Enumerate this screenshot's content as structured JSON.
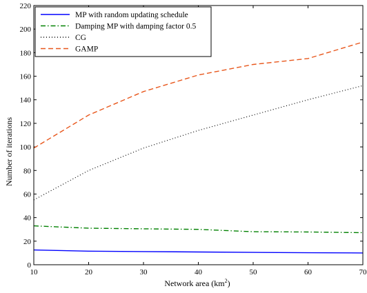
{
  "chart_data": {
    "type": "line",
    "title": "",
    "xlabel": "Network area (km",
    "xlabel_sup": "2",
    "xlabel_tail": ")",
    "ylabel": "Number of iterations",
    "xlim": [
      10,
      70
    ],
    "ylim": [
      0,
      220
    ],
    "xticks": [
      10,
      20,
      30,
      40,
      50,
      60,
      70
    ],
    "yticks": [
      0,
      20,
      40,
      60,
      80,
      100,
      120,
      140,
      160,
      180,
      200,
      220
    ],
    "grid": false,
    "legend_position": "top-left",
    "x": [
      10,
      20,
      30,
      40,
      50,
      60,
      70
    ],
    "series": [
      {
        "name": "MP with random updating schedule",
        "values": [
          12.5,
          11.5,
          11.2,
          10.8,
          10.5,
          10.2,
          10
        ],
        "color": "#0000ff",
        "dash": "solid"
      },
      {
        "name": "Damping MP with damping factor 0.5",
        "values": [
          33,
          31,
          30.5,
          30,
          28,
          27.8,
          27.2
        ],
        "color": "#008000",
        "dash": "dashdot"
      },
      {
        "name": "CG",
        "values": [
          55,
          80,
          99,
          114,
          127,
          140,
          152
        ],
        "color": "#000000",
        "dash": "dotted"
      },
      {
        "name": "GAMP",
        "values": [
          99,
          127,
          147,
          161,
          170,
          175,
          189
        ],
        "color": "#e8561b",
        "dash": "dashed"
      }
    ]
  }
}
